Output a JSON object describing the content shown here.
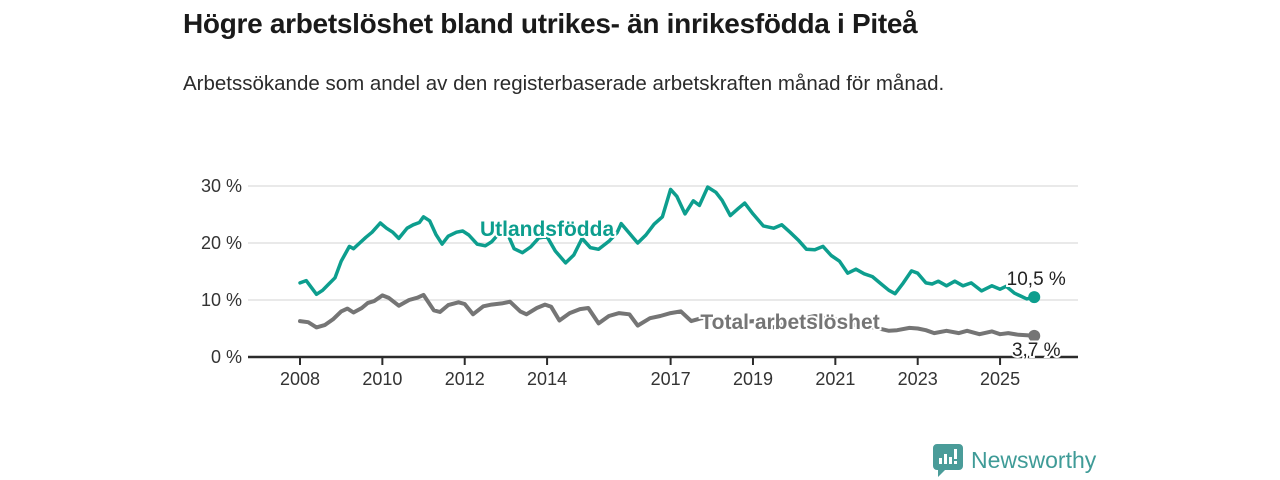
{
  "page": {
    "title": "Högre arbetslöshet bland utrikes- än inrikesfödda i Piteå",
    "subtitle": "Arbetssökande som andel av den registerbaserade arbetskraften månad för månad."
  },
  "branding": {
    "logo_text": "Newsworthy",
    "logo_color": "#3f9b97",
    "logo_icon": "bar-chart-speech-bubble-icon"
  },
  "chart_data": {
    "type": "line",
    "title": "Högre arbetslöshet bland utrikes- än inrikesfödda i Piteå",
    "xlabel": "",
    "ylabel": "",
    "x_unit": "year (monthly data)",
    "y_unit": "percent",
    "x_range": [
      2007.75,
      2026.3
    ],
    "y_range": [
      0,
      31
    ],
    "grid": "horizontal",
    "x_ticks": [
      {
        "value": 2008,
        "label": "2008"
      },
      {
        "value": 2010,
        "label": "2010"
      },
      {
        "value": 2012,
        "label": "2012"
      },
      {
        "value": 2014,
        "label": "2014"
      },
      {
        "value": 2017,
        "label": "2017"
      },
      {
        "value": 2019,
        "label": "2019"
      },
      {
        "value": 2021,
        "label": "2021"
      },
      {
        "value": 2023,
        "label": "2023"
      },
      {
        "value": 2025,
        "label": "2025"
      }
    ],
    "y_ticks": [
      {
        "value": 0,
        "label": "0 %"
      },
      {
        "value": 10,
        "label": "10 %"
      },
      {
        "value": 20,
        "label": "20 %"
      },
      {
        "value": 30,
        "label": "30 %"
      }
    ],
    "colors": {
      "grid": "#dcdcdc",
      "axis": "#2b2b2b",
      "tick_label": "#333333",
      "value_label": "#222222"
    },
    "series": [
      {
        "name": "Utlandsfödda",
        "color": "#0d9e8e",
        "line_width": 3.5,
        "label_anchor": {
          "x": 2014.0,
          "y": 22.5
        },
        "end_label": "10,5 %",
        "end_label_position": "above",
        "end_value": 10.5,
        "points": [
          [
            2008.0,
            13.0
          ],
          [
            2008.15,
            13.4
          ],
          [
            2008.4,
            11.0
          ],
          [
            2008.55,
            11.7
          ],
          [
            2008.7,
            12.8
          ],
          [
            2008.85,
            13.9
          ],
          [
            2009.0,
            16.8
          ],
          [
            2009.2,
            19.4
          ],
          [
            2009.3,
            19.0
          ],
          [
            2009.45,
            20.0
          ],
          [
            2009.6,
            21.0
          ],
          [
            2009.75,
            21.9
          ],
          [
            2009.95,
            23.5
          ],
          [
            2010.1,
            22.6
          ],
          [
            2010.25,
            21.9
          ],
          [
            2010.4,
            20.8
          ],
          [
            2010.6,
            22.6
          ],
          [
            2010.75,
            23.2
          ],
          [
            2010.9,
            23.6
          ],
          [
            2011.0,
            24.6
          ],
          [
            2011.15,
            23.9
          ],
          [
            2011.3,
            21.5
          ],
          [
            2011.45,
            19.8
          ],
          [
            2011.6,
            21.2
          ],
          [
            2011.8,
            21.9
          ],
          [
            2011.95,
            22.1
          ],
          [
            2012.1,
            21.4
          ],
          [
            2012.3,
            19.8
          ],
          [
            2012.5,
            19.5
          ],
          [
            2012.65,
            20.2
          ],
          [
            2012.8,
            21.4
          ],
          [
            2013.0,
            22.3
          ],
          [
            2013.2,
            19.0
          ],
          [
            2013.4,
            18.3
          ],
          [
            2013.6,
            19.3
          ],
          [
            2013.8,
            20.9
          ],
          [
            2014.0,
            21.1
          ],
          [
            2014.2,
            18.6
          ],
          [
            2014.45,
            16.5
          ],
          [
            2014.65,
            17.9
          ],
          [
            2014.85,
            20.8
          ],
          [
            2015.05,
            19.2
          ],
          [
            2015.25,
            18.9
          ],
          [
            2015.5,
            20.3
          ],
          [
            2015.7,
            21.8
          ],
          [
            2015.8,
            23.4
          ],
          [
            2016.0,
            21.7
          ],
          [
            2016.2,
            20.0
          ],
          [
            2016.4,
            21.4
          ],
          [
            2016.6,
            23.3
          ],
          [
            2016.8,
            24.6
          ],
          [
            2017.0,
            29.4
          ],
          [
            2017.15,
            28.2
          ],
          [
            2017.35,
            25.1
          ],
          [
            2017.55,
            27.4
          ],
          [
            2017.7,
            26.6
          ],
          [
            2017.9,
            29.8
          ],
          [
            2018.1,
            28.9
          ],
          [
            2018.25,
            27.5
          ],
          [
            2018.45,
            24.8
          ],
          [
            2018.65,
            26.1
          ],
          [
            2018.8,
            27.0
          ],
          [
            2019.0,
            25.1
          ],
          [
            2019.25,
            23.0
          ],
          [
            2019.5,
            22.6
          ],
          [
            2019.7,
            23.2
          ],
          [
            2019.9,
            21.9
          ],
          [
            2020.1,
            20.5
          ],
          [
            2020.3,
            18.9
          ],
          [
            2020.5,
            18.8
          ],
          [
            2020.7,
            19.4
          ],
          [
            2020.9,
            17.8
          ],
          [
            2021.1,
            16.8
          ],
          [
            2021.3,
            14.7
          ],
          [
            2021.5,
            15.4
          ],
          [
            2021.7,
            14.6
          ],
          [
            2021.9,
            14.1
          ],
          [
            2022.1,
            12.9
          ],
          [
            2022.3,
            11.7
          ],
          [
            2022.45,
            11.1
          ],
          [
            2022.65,
            13.0
          ],
          [
            2022.85,
            15.1
          ],
          [
            2023.0,
            14.7
          ],
          [
            2023.2,
            13.0
          ],
          [
            2023.35,
            12.8
          ],
          [
            2023.5,
            13.3
          ],
          [
            2023.7,
            12.5
          ],
          [
            2023.9,
            13.3
          ],
          [
            2024.1,
            12.5
          ],
          [
            2024.3,
            13.0
          ],
          [
            2024.55,
            11.6
          ],
          [
            2024.8,
            12.5
          ],
          [
            2025.0,
            11.9
          ],
          [
            2025.15,
            12.4
          ],
          [
            2025.35,
            11.2
          ],
          [
            2025.5,
            10.7
          ],
          [
            2025.65,
            10.2
          ],
          [
            2025.83,
            10.5
          ]
        ]
      },
      {
        "name": "Total arbetslöshet",
        "color": "#757575",
        "line_width": 4,
        "label_anchor": {
          "x": 2019.9,
          "y": 6.1
        },
        "end_label": "3,7 %",
        "end_label_position": "below",
        "end_value": 3.7,
        "points": [
          [
            2008.0,
            6.3
          ],
          [
            2008.2,
            6.1
          ],
          [
            2008.4,
            5.2
          ],
          [
            2008.6,
            5.6
          ],
          [
            2008.8,
            6.6
          ],
          [
            2009.0,
            8.0
          ],
          [
            2009.15,
            8.5
          ],
          [
            2009.3,
            7.8
          ],
          [
            2009.5,
            8.6
          ],
          [
            2009.65,
            9.5
          ],
          [
            2009.8,
            9.8
          ],
          [
            2010.0,
            10.8
          ],
          [
            2010.15,
            10.4
          ],
          [
            2010.4,
            9.0
          ],
          [
            2010.65,
            10.0
          ],
          [
            2010.85,
            10.4
          ],
          [
            2011.0,
            10.9
          ],
          [
            2011.25,
            8.2
          ],
          [
            2011.4,
            7.9
          ],
          [
            2011.6,
            9.1
          ],
          [
            2011.85,
            9.6
          ],
          [
            2012.0,
            9.3
          ],
          [
            2012.2,
            7.5
          ],
          [
            2012.45,
            8.9
          ],
          [
            2012.65,
            9.2
          ],
          [
            2012.9,
            9.4
          ],
          [
            2013.1,
            9.7
          ],
          [
            2013.35,
            8.0
          ],
          [
            2013.5,
            7.5
          ],
          [
            2013.75,
            8.6
          ],
          [
            2013.95,
            9.2
          ],
          [
            2014.1,
            8.8
          ],
          [
            2014.3,
            6.4
          ],
          [
            2014.55,
            7.7
          ],
          [
            2014.8,
            8.4
          ],
          [
            2015.0,
            8.6
          ],
          [
            2015.25,
            5.9
          ],
          [
            2015.5,
            7.2
          ],
          [
            2015.75,
            7.7
          ],
          [
            2016.0,
            7.5
          ],
          [
            2016.2,
            5.5
          ],
          [
            2016.5,
            6.8
          ],
          [
            2016.75,
            7.2
          ],
          [
            2017.0,
            7.7
          ],
          [
            2017.25,
            8.0
          ],
          [
            2017.5,
            6.3
          ],
          [
            2017.75,
            6.8
          ],
          [
            2018.0,
            7.0
          ],
          [
            2018.25,
            6.3
          ],
          [
            2018.5,
            5.6
          ],
          [
            2018.75,
            6.1
          ],
          [
            2019.0,
            6.3
          ],
          [
            2019.25,
            5.5
          ],
          [
            2019.5,
            5.2
          ],
          [
            2019.75,
            5.8
          ],
          [
            2020.0,
            6.0
          ],
          [
            2020.3,
            6.9
          ],
          [
            2020.5,
            7.2
          ],
          [
            2020.75,
            6.8
          ],
          [
            2021.0,
            6.6
          ],
          [
            2021.25,
            5.9
          ],
          [
            2021.5,
            5.6
          ],
          [
            2021.75,
            5.4
          ],
          [
            2022.0,
            5.1
          ],
          [
            2022.3,
            4.6
          ],
          [
            2022.5,
            4.7
          ],
          [
            2022.8,
            5.1
          ],
          [
            2023.0,
            5.0
          ],
          [
            2023.2,
            4.7
          ],
          [
            2023.4,
            4.2
          ],
          [
            2023.7,
            4.6
          ],
          [
            2024.0,
            4.2
          ],
          [
            2024.2,
            4.6
          ],
          [
            2024.5,
            4.0
          ],
          [
            2024.8,
            4.5
          ],
          [
            2025.0,
            4.0
          ],
          [
            2025.2,
            4.2
          ],
          [
            2025.45,
            3.9
          ],
          [
            2025.65,
            3.8
          ],
          [
            2025.83,
            3.7
          ]
        ]
      }
    ]
  }
}
